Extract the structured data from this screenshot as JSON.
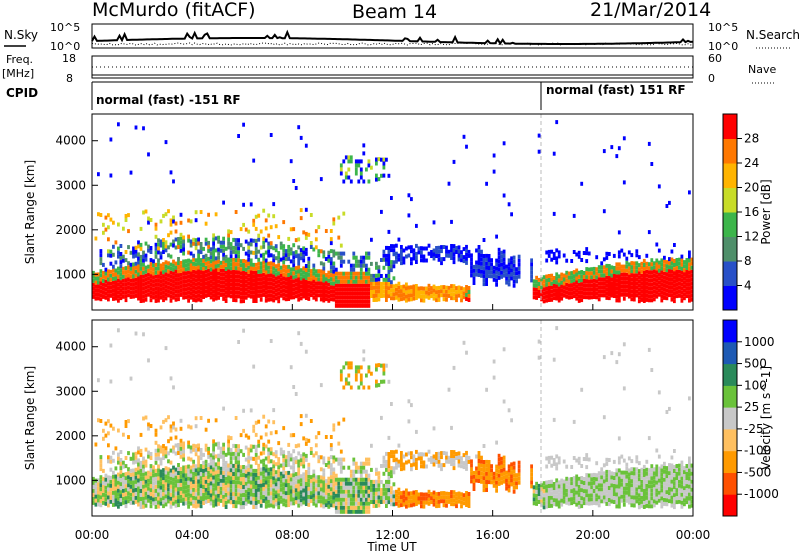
{
  "header": {
    "station": "McMurdo (fitACF)",
    "beam": "Beam 14",
    "date": "21/Mar/2014"
  },
  "noise_panel": {
    "left_label": "N.Sky",
    "right_label": "N.Search",
    "left_ticks": [
      "10^5",
      "10^0"
    ],
    "right_ticks": [
      "10^5",
      "10^0"
    ]
  },
  "freq_panel": {
    "left_label": "Freq.",
    "left_unit": "[MHz]",
    "left_ticks": [
      "18",
      "8"
    ],
    "right_label": "Nave",
    "right_ticks": [
      "60",
      "0"
    ]
  },
  "cpid_panel": {
    "label": "CPID",
    "segments": [
      {
        "start_hour": 0.0,
        "text": "normal (fast) -151 RF"
      },
      {
        "start_hour": 18.0,
        "text": "normal (fast) 151 RF"
      }
    ]
  },
  "colors": {
    "power_scale": [
      "#0000ff",
      "#2850c8",
      "#4f8f6a",
      "#3cb54a",
      "#c8dc28",
      "#ffb400",
      "#ff7800",
      "#ff0000"
    ],
    "velocity_scale": [
      "#ff0000",
      "#ff5000",
      "#ff9a00",
      "#ffc060",
      "#c8c8c8",
      "#6ac23a",
      "#2a8a5a",
      "#1e5ab4",
      "#0000ff"
    ]
  },
  "chart_data": [
    {
      "type": "heatmap",
      "panel": "power",
      "x_min_hours": 0,
      "x_max_hours": 24,
      "ylabel": "Slant Range [km]",
      "ylim": [
        200,
        4600
      ],
      "yticks": [
        "1000",
        "2000",
        "3000",
        "4000"
      ],
      "colorbar_label": "Power [dB]",
      "colorbar_ticks": [
        "4",
        "8",
        "12",
        "16",
        "20",
        "24",
        "28"
      ],
      "colorbar_range": [
        0,
        32
      ]
    },
    {
      "type": "heatmap",
      "panel": "velocity",
      "x_min_hours": 0,
      "x_max_hours": 24,
      "ylabel": "Slant Range [km]",
      "ylim": [
        200,
        4600
      ],
      "yticks": [
        "1000",
        "2000",
        "3000",
        "4000"
      ],
      "colorbar_label": "Velocity [m s^-1]",
      "colorbar_ticks": [
        "-1000",
        "-500",
        "-100",
        "-25",
        "25",
        "100",
        "500",
        "1000"
      ]
    }
  ],
  "x_axis": {
    "label": "Time UT",
    "ticks": [
      "00:00",
      "04:00",
      "08:00",
      "12:00",
      "16:00",
      "20:00",
      "00:00"
    ]
  }
}
